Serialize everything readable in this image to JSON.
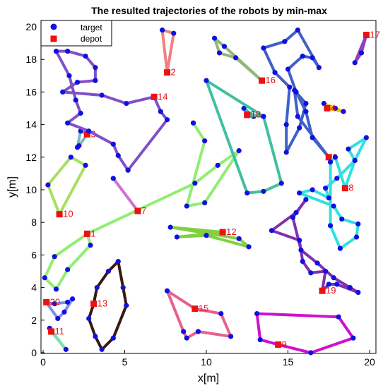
{
  "chart_data": {
    "type": "line",
    "title": "The resulted trajectories of the robots by min-max",
    "xlabel": "x[m]",
    "ylabel": "y[m]",
    "xlim": [
      0,
      20
    ],
    "ylim": [
      0,
      20
    ],
    "xticks": [
      "0",
      "5",
      "10",
      "15",
      "20"
    ],
    "yticks": [
      "0",
      "2",
      "4",
      "6",
      "8",
      "10",
      "12",
      "14",
      "16",
      "18",
      "20"
    ],
    "legend": {
      "position": "top-left",
      "entries": [
        "target",
        "depot"
      ]
    },
    "colors": {
      "target": "#1010e0",
      "depot": "#ee1111",
      "label": "#e8101a"
    },
    "series": [
      {
        "label": "1",
        "color": "#90ee70",
        "depot": [
          2.7,
          7.3
        ],
        "points": [
          [
            2.7,
            7.3
          ],
          [
            2.9,
            6.6
          ],
          [
            1.5,
            5.1
          ],
          [
            0.8,
            3.9
          ],
          [
            0.1,
            4.6
          ],
          [
            0.7,
            5.9
          ],
          [
            2.7,
            7.3
          ],
          [
            9.3,
            10.4
          ],
          [
            10.7,
            11.5
          ],
          [
            12.0,
            12.4
          ],
          [
            9.9,
            9.2
          ],
          [
            8.8,
            9.0
          ],
          [
            9.9,
            13.0
          ],
          [
            9.2,
            14.1
          ],
          [
            9.2,
            14.1
          ]
        ]
      },
      {
        "label": "2",
        "color": "#f08080",
        "depot": [
          7.6,
          17.2
        ],
        "points": [
          [
            7.6,
            17.2
          ],
          [
            7.3,
            19.8
          ],
          [
            8.0,
            19.6
          ],
          [
            7.6,
            17.2
          ]
        ]
      },
      {
        "label": "3",
        "color": "#7fb7c4",
        "depot": [
          2.7,
          13.4
        ],
        "points": [
          [
            2.7,
            13.4
          ],
          [
            2.2,
            12.7
          ],
          [
            2.1,
            12.6
          ],
          [
            2.3,
            13.6
          ],
          [
            2.7,
            13.4
          ]
        ]
      },
      {
        "label": "4",
        "color": "#f0c000",
        "depot": [
          17.4,
          15.0
        ],
        "points": [
          [
            17.4,
            15.0
          ],
          [
            17.2,
            15.3
          ],
          [
            17.9,
            15.0
          ],
          [
            18.4,
            14.8
          ],
          [
            17.4,
            15.0
          ]
        ]
      },
      {
        "label": "5",
        "color": "#20c0c0",
        "depot": [
          12.5,
          14.6
        ],
        "points": [
          [
            12.5,
            14.6
          ],
          [
            12.3,
            15.0
          ],
          [
            12.9,
            14.5
          ],
          [
            12.5,
            14.6
          ]
        ]
      },
      {
        "label": "6",
        "color": "#4060c8",
        "depot": [
          17.5,
          12.0
        ],
        "points": [
          [
            17.5,
            12.0
          ],
          [
            16.5,
            13.2
          ],
          [
            16.1,
            14.8
          ],
          [
            15.5,
            16.0
          ],
          [
            15.0,
            17.4
          ],
          [
            15.9,
            18.2
          ],
          [
            16.5,
            18.1
          ],
          [
            16.9,
            17.5
          ],
          [
            15.6,
            19.8
          ],
          [
            14.8,
            19.1
          ],
          [
            13.5,
            18.7
          ],
          [
            14.2,
            17.2
          ],
          [
            15.1,
            16.3
          ],
          [
            14.9,
            14.0
          ],
          [
            14.9,
            12.3
          ],
          [
            15.7,
            13.8
          ],
          [
            16.1,
            15.3
          ],
          [
            15.4,
            16.1
          ],
          [
            15.6,
            14.5
          ],
          [
            17.5,
            12.0
          ]
        ]
      },
      {
        "label": "7",
        "color": "#d070d0",
        "depot": [
          5.8,
          8.7
        ],
        "points": [
          [
            5.8,
            8.7
          ],
          [
            4.3,
            10.7
          ],
          [
            5.8,
            8.7
          ]
        ]
      },
      {
        "label": "8",
        "color": "#30e0e0",
        "depot": [
          18.5,
          10.1
        ],
        "points": [
          [
            18.5,
            10.1
          ],
          [
            19.1,
            11.8
          ],
          [
            19.8,
            13.2
          ],
          [
            18.7,
            12.5
          ],
          [
            19.1,
            11.8
          ],
          [
            18.0,
            10.7
          ],
          [
            17.3,
            10.1
          ],
          [
            17.5,
            9.5
          ],
          [
            16.5,
            10.0
          ],
          [
            15.7,
            9.8
          ],
          [
            17.8,
            9.0
          ],
          [
            18.3,
            8.2
          ],
          [
            19.3,
            7.9
          ],
          [
            19.2,
            7.1
          ],
          [
            18.2,
            6.4
          ],
          [
            17.6,
            7.8
          ],
          [
            17.6,
            11.7
          ],
          [
            17.9,
            12.0
          ],
          [
            18.5,
            10.1
          ]
        ]
      },
      {
        "label": "9",
        "color": "#d010d0",
        "depot": [
          14.4,
          0.5
        ],
        "points": [
          [
            14.4,
            0.5
          ],
          [
            16.4,
            0.0
          ],
          [
            19.0,
            0.9
          ],
          [
            18.1,
            2.2
          ],
          [
            13.1,
            2.4
          ],
          [
            13.3,
            0.8
          ],
          [
            14.4,
            0.5
          ]
        ]
      },
      {
        "label": "10",
        "color": "#a8e060",
        "depot": [
          1.0,
          8.5
        ],
        "points": [
          [
            1.0,
            8.5
          ],
          [
            0.3,
            10.3
          ],
          [
            1.7,
            12.0
          ],
          [
            2.6,
            11.5
          ],
          [
            1.0,
            8.5
          ]
        ]
      },
      {
        "label": "11",
        "color": "#80e0b0",
        "depot": [
          0.5,
          1.3
        ],
        "points": [
          [
            0.5,
            1.3
          ],
          [
            0.4,
            1.5
          ],
          [
            1.4,
            0.2
          ],
          [
            0.5,
            1.3
          ]
        ]
      },
      {
        "label": "12",
        "color": "#80d040",
        "depot": [
          11.0,
          7.4
        ],
        "points": [
          [
            11.0,
            7.4
          ],
          [
            7.8,
            7.7
          ],
          [
            12.0,
            7.0
          ],
          [
            12.6,
            6.5
          ],
          [
            10.0,
            7.2
          ],
          [
            8.2,
            7.1
          ],
          [
            11.0,
            7.4
          ]
        ]
      },
      {
        "label": "13",
        "color": "#3a1a10",
        "depot": [
          3.1,
          3.0
        ],
        "points": [
          [
            3.1,
            3.0
          ],
          [
            3.3,
            4.0
          ],
          [
            4.0,
            5.0
          ],
          [
            4.6,
            5.6
          ],
          [
            4.9,
            4.0
          ],
          [
            5.1,
            2.9
          ],
          [
            4.3,
            0.9
          ],
          [
            3.6,
            0.2
          ],
          [
            3.2,
            1.0
          ],
          [
            2.8,
            2.1
          ],
          [
            3.1,
            3.0
          ]
        ]
      },
      {
        "label": "14",
        "color": "#8050c8",
        "depot": [
          6.8,
          15.7
        ],
        "points": [
          [
            6.8,
            15.7
          ],
          [
            7.2,
            14.8
          ],
          [
            7.6,
            14.3
          ],
          [
            5.2,
            11.2
          ],
          [
            4.6,
            12.1
          ],
          [
            4.3,
            12.8
          ],
          [
            2.8,
            13.6
          ],
          [
            1.5,
            14.1
          ],
          [
            2.3,
            14.7
          ],
          [
            2.0,
            15.5
          ],
          [
            1.6,
            17.0
          ],
          [
            0.8,
            18.5
          ],
          [
            1.5,
            18.5
          ],
          [
            2.6,
            18.2
          ],
          [
            3.2,
            17.5
          ],
          [
            3.2,
            16.7
          ],
          [
            2.1,
            16.6
          ],
          [
            1.2,
            16.0
          ],
          [
            3.6,
            15.8
          ],
          [
            5.1,
            15.3
          ],
          [
            6.8,
            15.7
          ]
        ]
      },
      {
        "label": "15",
        "color": "#e86090",
        "depot": [
          9.3,
          2.7
        ],
        "points": [
          [
            9.3,
            2.7
          ],
          [
            7.6,
            3.8
          ],
          [
            8.6,
            1.3
          ],
          [
            8.8,
            0.9
          ],
          [
            9.5,
            1.3
          ],
          [
            11.5,
            1.0
          ],
          [
            10.9,
            2.4
          ],
          [
            9.3,
            2.7
          ]
        ]
      },
      {
        "label": "16",
        "color": "#90b878",
        "depot": [
          13.4,
          16.7
        ],
        "points": [
          [
            13.4,
            16.7
          ],
          [
            11.1,
            18.8
          ],
          [
            10.5,
            19.3
          ],
          [
            10.8,
            18.4
          ],
          [
            11.8,
            18.1
          ],
          [
            13.4,
            16.7
          ]
        ]
      },
      {
        "label": "17",
        "color": "#9040c0",
        "depot": [
          19.8,
          19.5
        ],
        "points": [
          [
            19.8,
            19.5
          ],
          [
            19.1,
            17.8
          ],
          [
            19.5,
            18.4
          ],
          [
            19.8,
            19.5
          ]
        ]
      },
      {
        "label": "18",
        "color": "#40c0a0",
        "depot": [
          12.5,
          14.6
        ],
        "points": [
          [
            12.5,
            14.6
          ],
          [
            13.5,
            14.5
          ],
          [
            14.6,
            10.4
          ],
          [
            13.5,
            9.9
          ],
          [
            12.5,
            9.8
          ],
          [
            10.0,
            16.7
          ],
          [
            13.5,
            14.5
          ]
        ]
      },
      {
        "label": "19",
        "color": "#8030b0",
        "depot": [
          17.1,
          3.8
        ],
        "points": [
          [
            17.1,
            3.8
          ],
          [
            17.5,
            4.2
          ],
          [
            18.0,
            4.2
          ],
          [
            19.3,
            3.7
          ],
          [
            18.8,
            4.0
          ],
          [
            17.8,
            4.6
          ],
          [
            16.8,
            5.5
          ],
          [
            15.8,
            6.3
          ],
          [
            15.3,
            8.3
          ],
          [
            16.1,
            9.4
          ],
          [
            15.5,
            8.6
          ],
          [
            14.0,
            7.5
          ],
          [
            15.7,
            6.9
          ],
          [
            15.9,
            5.6
          ],
          [
            16.4,
            4.9
          ],
          [
            17.3,
            5.0
          ],
          [
            17.1,
            3.8
          ]
        ]
      },
      {
        "label": "20",
        "color": "#8090e0",
        "depot": [
          0.2,
          3.1
        ],
        "points": [
          [
            0.2,
            3.1
          ],
          [
            0.7,
            3.0
          ],
          [
            1.5,
            3.1
          ],
          [
            1.8,
            3.3
          ],
          [
            1.3,
            2.5
          ],
          [
            0.9,
            2.1
          ],
          [
            0.2,
            3.1
          ]
        ]
      }
    ]
  }
}
